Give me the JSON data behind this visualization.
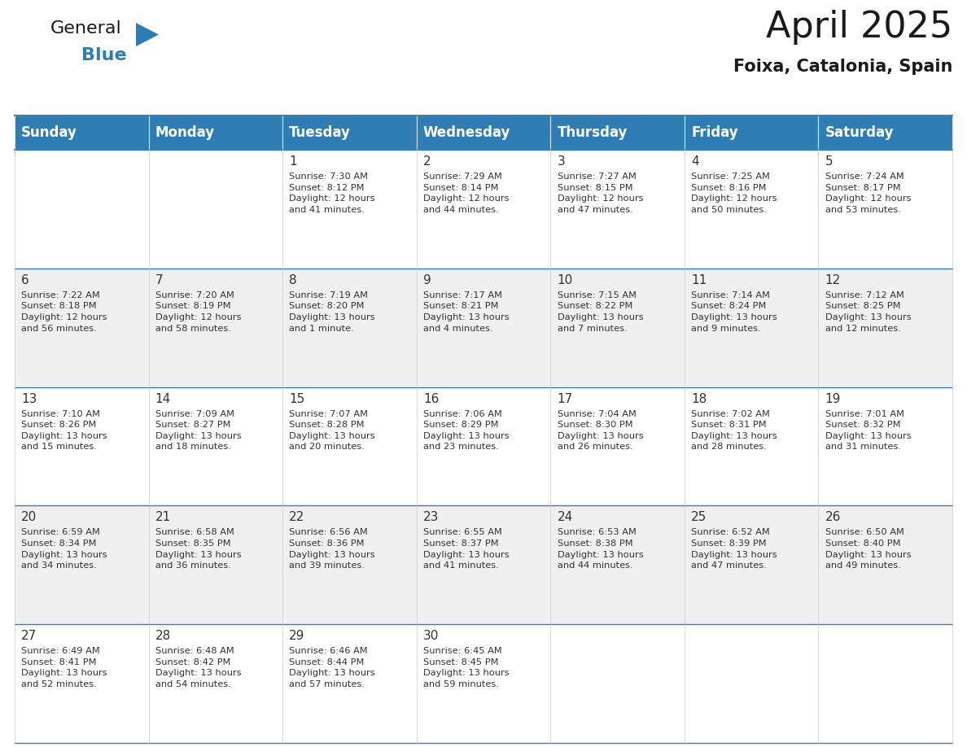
{
  "title": "April 2025",
  "subtitle": "Foixa, Catalonia, Spain",
  "header_bg_color": "#2E7DB5",
  "header_text_color": "#FFFFFF",
  "row_bg_even": "#FFFFFF",
  "row_bg_odd": "#F0F0F0",
  "grid_line_color": "#3A7DB5",
  "text_color": "#333333",
  "day_headers": [
    "Sunday",
    "Monday",
    "Tuesday",
    "Wednesday",
    "Thursday",
    "Friday",
    "Saturday"
  ],
  "weeks": [
    [
      {
        "day": "",
        "info": ""
      },
      {
        "day": "",
        "info": ""
      },
      {
        "day": "1",
        "info": "Sunrise: 7:30 AM\nSunset: 8:12 PM\nDaylight: 12 hours\nand 41 minutes."
      },
      {
        "day": "2",
        "info": "Sunrise: 7:29 AM\nSunset: 8:14 PM\nDaylight: 12 hours\nand 44 minutes."
      },
      {
        "day": "3",
        "info": "Sunrise: 7:27 AM\nSunset: 8:15 PM\nDaylight: 12 hours\nand 47 minutes."
      },
      {
        "day": "4",
        "info": "Sunrise: 7:25 AM\nSunset: 8:16 PM\nDaylight: 12 hours\nand 50 minutes."
      },
      {
        "day": "5",
        "info": "Sunrise: 7:24 AM\nSunset: 8:17 PM\nDaylight: 12 hours\nand 53 minutes."
      }
    ],
    [
      {
        "day": "6",
        "info": "Sunrise: 7:22 AM\nSunset: 8:18 PM\nDaylight: 12 hours\nand 56 minutes."
      },
      {
        "day": "7",
        "info": "Sunrise: 7:20 AM\nSunset: 8:19 PM\nDaylight: 12 hours\nand 58 minutes."
      },
      {
        "day": "8",
        "info": "Sunrise: 7:19 AM\nSunset: 8:20 PM\nDaylight: 13 hours\nand 1 minute."
      },
      {
        "day": "9",
        "info": "Sunrise: 7:17 AM\nSunset: 8:21 PM\nDaylight: 13 hours\nand 4 minutes."
      },
      {
        "day": "10",
        "info": "Sunrise: 7:15 AM\nSunset: 8:22 PM\nDaylight: 13 hours\nand 7 minutes."
      },
      {
        "day": "11",
        "info": "Sunrise: 7:14 AM\nSunset: 8:24 PM\nDaylight: 13 hours\nand 9 minutes."
      },
      {
        "day": "12",
        "info": "Sunrise: 7:12 AM\nSunset: 8:25 PM\nDaylight: 13 hours\nand 12 minutes."
      }
    ],
    [
      {
        "day": "13",
        "info": "Sunrise: 7:10 AM\nSunset: 8:26 PM\nDaylight: 13 hours\nand 15 minutes."
      },
      {
        "day": "14",
        "info": "Sunrise: 7:09 AM\nSunset: 8:27 PM\nDaylight: 13 hours\nand 18 minutes."
      },
      {
        "day": "15",
        "info": "Sunrise: 7:07 AM\nSunset: 8:28 PM\nDaylight: 13 hours\nand 20 minutes."
      },
      {
        "day": "16",
        "info": "Sunrise: 7:06 AM\nSunset: 8:29 PM\nDaylight: 13 hours\nand 23 minutes."
      },
      {
        "day": "17",
        "info": "Sunrise: 7:04 AM\nSunset: 8:30 PM\nDaylight: 13 hours\nand 26 minutes."
      },
      {
        "day": "18",
        "info": "Sunrise: 7:02 AM\nSunset: 8:31 PM\nDaylight: 13 hours\nand 28 minutes."
      },
      {
        "day": "19",
        "info": "Sunrise: 7:01 AM\nSunset: 8:32 PM\nDaylight: 13 hours\nand 31 minutes."
      }
    ],
    [
      {
        "day": "20",
        "info": "Sunrise: 6:59 AM\nSunset: 8:34 PM\nDaylight: 13 hours\nand 34 minutes."
      },
      {
        "day": "21",
        "info": "Sunrise: 6:58 AM\nSunset: 8:35 PM\nDaylight: 13 hours\nand 36 minutes."
      },
      {
        "day": "22",
        "info": "Sunrise: 6:56 AM\nSunset: 8:36 PM\nDaylight: 13 hours\nand 39 minutes."
      },
      {
        "day": "23",
        "info": "Sunrise: 6:55 AM\nSunset: 8:37 PM\nDaylight: 13 hours\nand 41 minutes."
      },
      {
        "day": "24",
        "info": "Sunrise: 6:53 AM\nSunset: 8:38 PM\nDaylight: 13 hours\nand 44 minutes."
      },
      {
        "day": "25",
        "info": "Sunrise: 6:52 AM\nSunset: 8:39 PM\nDaylight: 13 hours\nand 47 minutes."
      },
      {
        "day": "26",
        "info": "Sunrise: 6:50 AM\nSunset: 8:40 PM\nDaylight: 13 hours\nand 49 minutes."
      }
    ],
    [
      {
        "day": "27",
        "info": "Sunrise: 6:49 AM\nSunset: 8:41 PM\nDaylight: 13 hours\nand 52 minutes."
      },
      {
        "day": "28",
        "info": "Sunrise: 6:48 AM\nSunset: 8:42 PM\nDaylight: 13 hours\nand 54 minutes."
      },
      {
        "day": "29",
        "info": "Sunrise: 6:46 AM\nSunset: 8:44 PM\nDaylight: 13 hours\nand 57 minutes."
      },
      {
        "day": "30",
        "info": "Sunrise: 6:45 AM\nSunset: 8:45 PM\nDaylight: 13 hours\nand 59 minutes."
      },
      {
        "day": "",
        "info": ""
      },
      {
        "day": "",
        "info": ""
      },
      {
        "day": "",
        "info": ""
      }
    ]
  ],
  "n_weeks": 5,
  "n_cols": 7,
  "logo_general_color": "#1a1a1a",
  "logo_blue_color": "#2E7DB5",
  "title_fontsize": 32,
  "subtitle_fontsize": 15,
  "day_number_fontsize": 11,
  "info_fontsize": 8.2,
  "header_fontsize": 12
}
